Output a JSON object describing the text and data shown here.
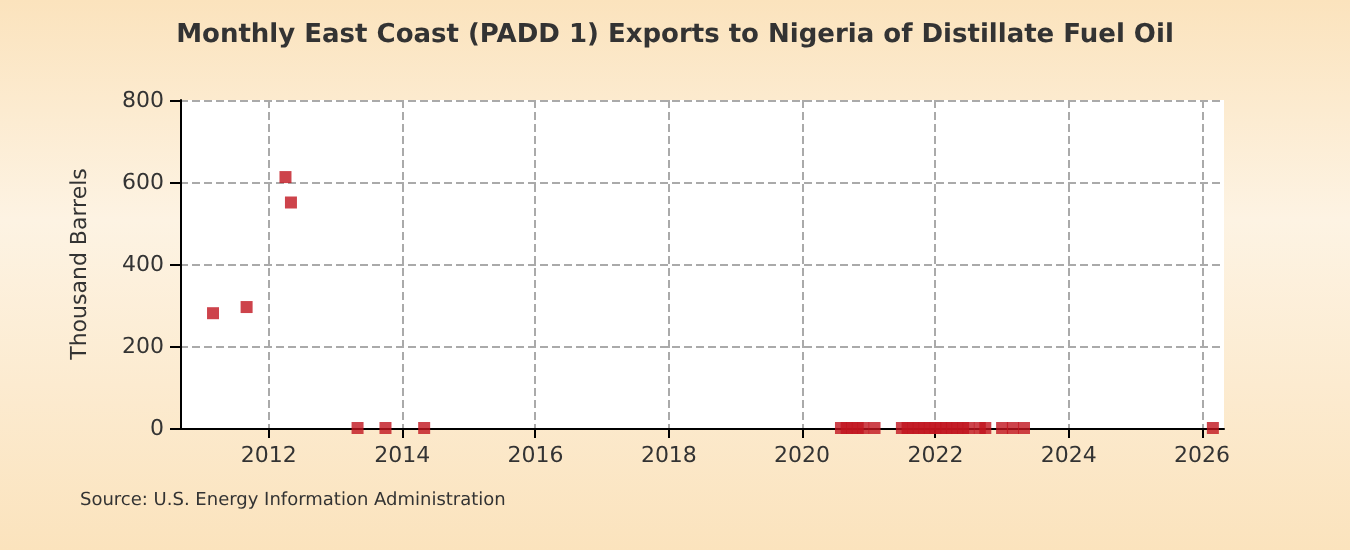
{
  "chart_data": {
    "type": "scatter",
    "title": "Monthly East Coast (PADD 1) Exports to Nigeria of Distillate Fuel Oil",
    "ylabel": "Thousand Barrels",
    "x": [
      "2011-03",
      "2011-09",
      "2012-04",
      "2012-05",
      "2013-05",
      "2013-10",
      "2014-05",
      "2020-08",
      "2020-09",
      "2020-10",
      "2020-11",
      "2020-12",
      "2021-02",
      "2021-07",
      "2021-08",
      "2021-09",
      "2021-10",
      "2021-11",
      "2021-12",
      "2022-01",
      "2022-02",
      "2022-03",
      "2022-04",
      "2022-05",
      "2022-06",
      "2022-07",
      "2022-09",
      "2022-10",
      "2023-01",
      "2023-03",
      "2023-05",
      "2026-03"
    ],
    "values": [
      280,
      295,
      612,
      550,
      0,
      0,
      0,
      0,
      0,
      0,
      0,
      0,
      0,
      0,
      0,
      0,
      0,
      0,
      0,
      0,
      0,
      0,
      0,
      0,
      0,
      0,
      0,
      0,
      0,
      0,
      0,
      0
    ],
    "color": "#c0141e",
    "marker": "square",
    "xlim": [
      "2010-09",
      "2026-05"
    ],
    "xticks": [
      "2012",
      "2014",
      "2016",
      "2018",
      "2020",
      "2022",
      "2024",
      "2026"
    ],
    "ylim": [
      0,
      800
    ],
    "yticks": [
      0,
      200,
      400,
      600,
      800
    ],
    "grid": true,
    "annotations": [
      "Source: U.S. Energy Information Administration"
    ]
  }
}
